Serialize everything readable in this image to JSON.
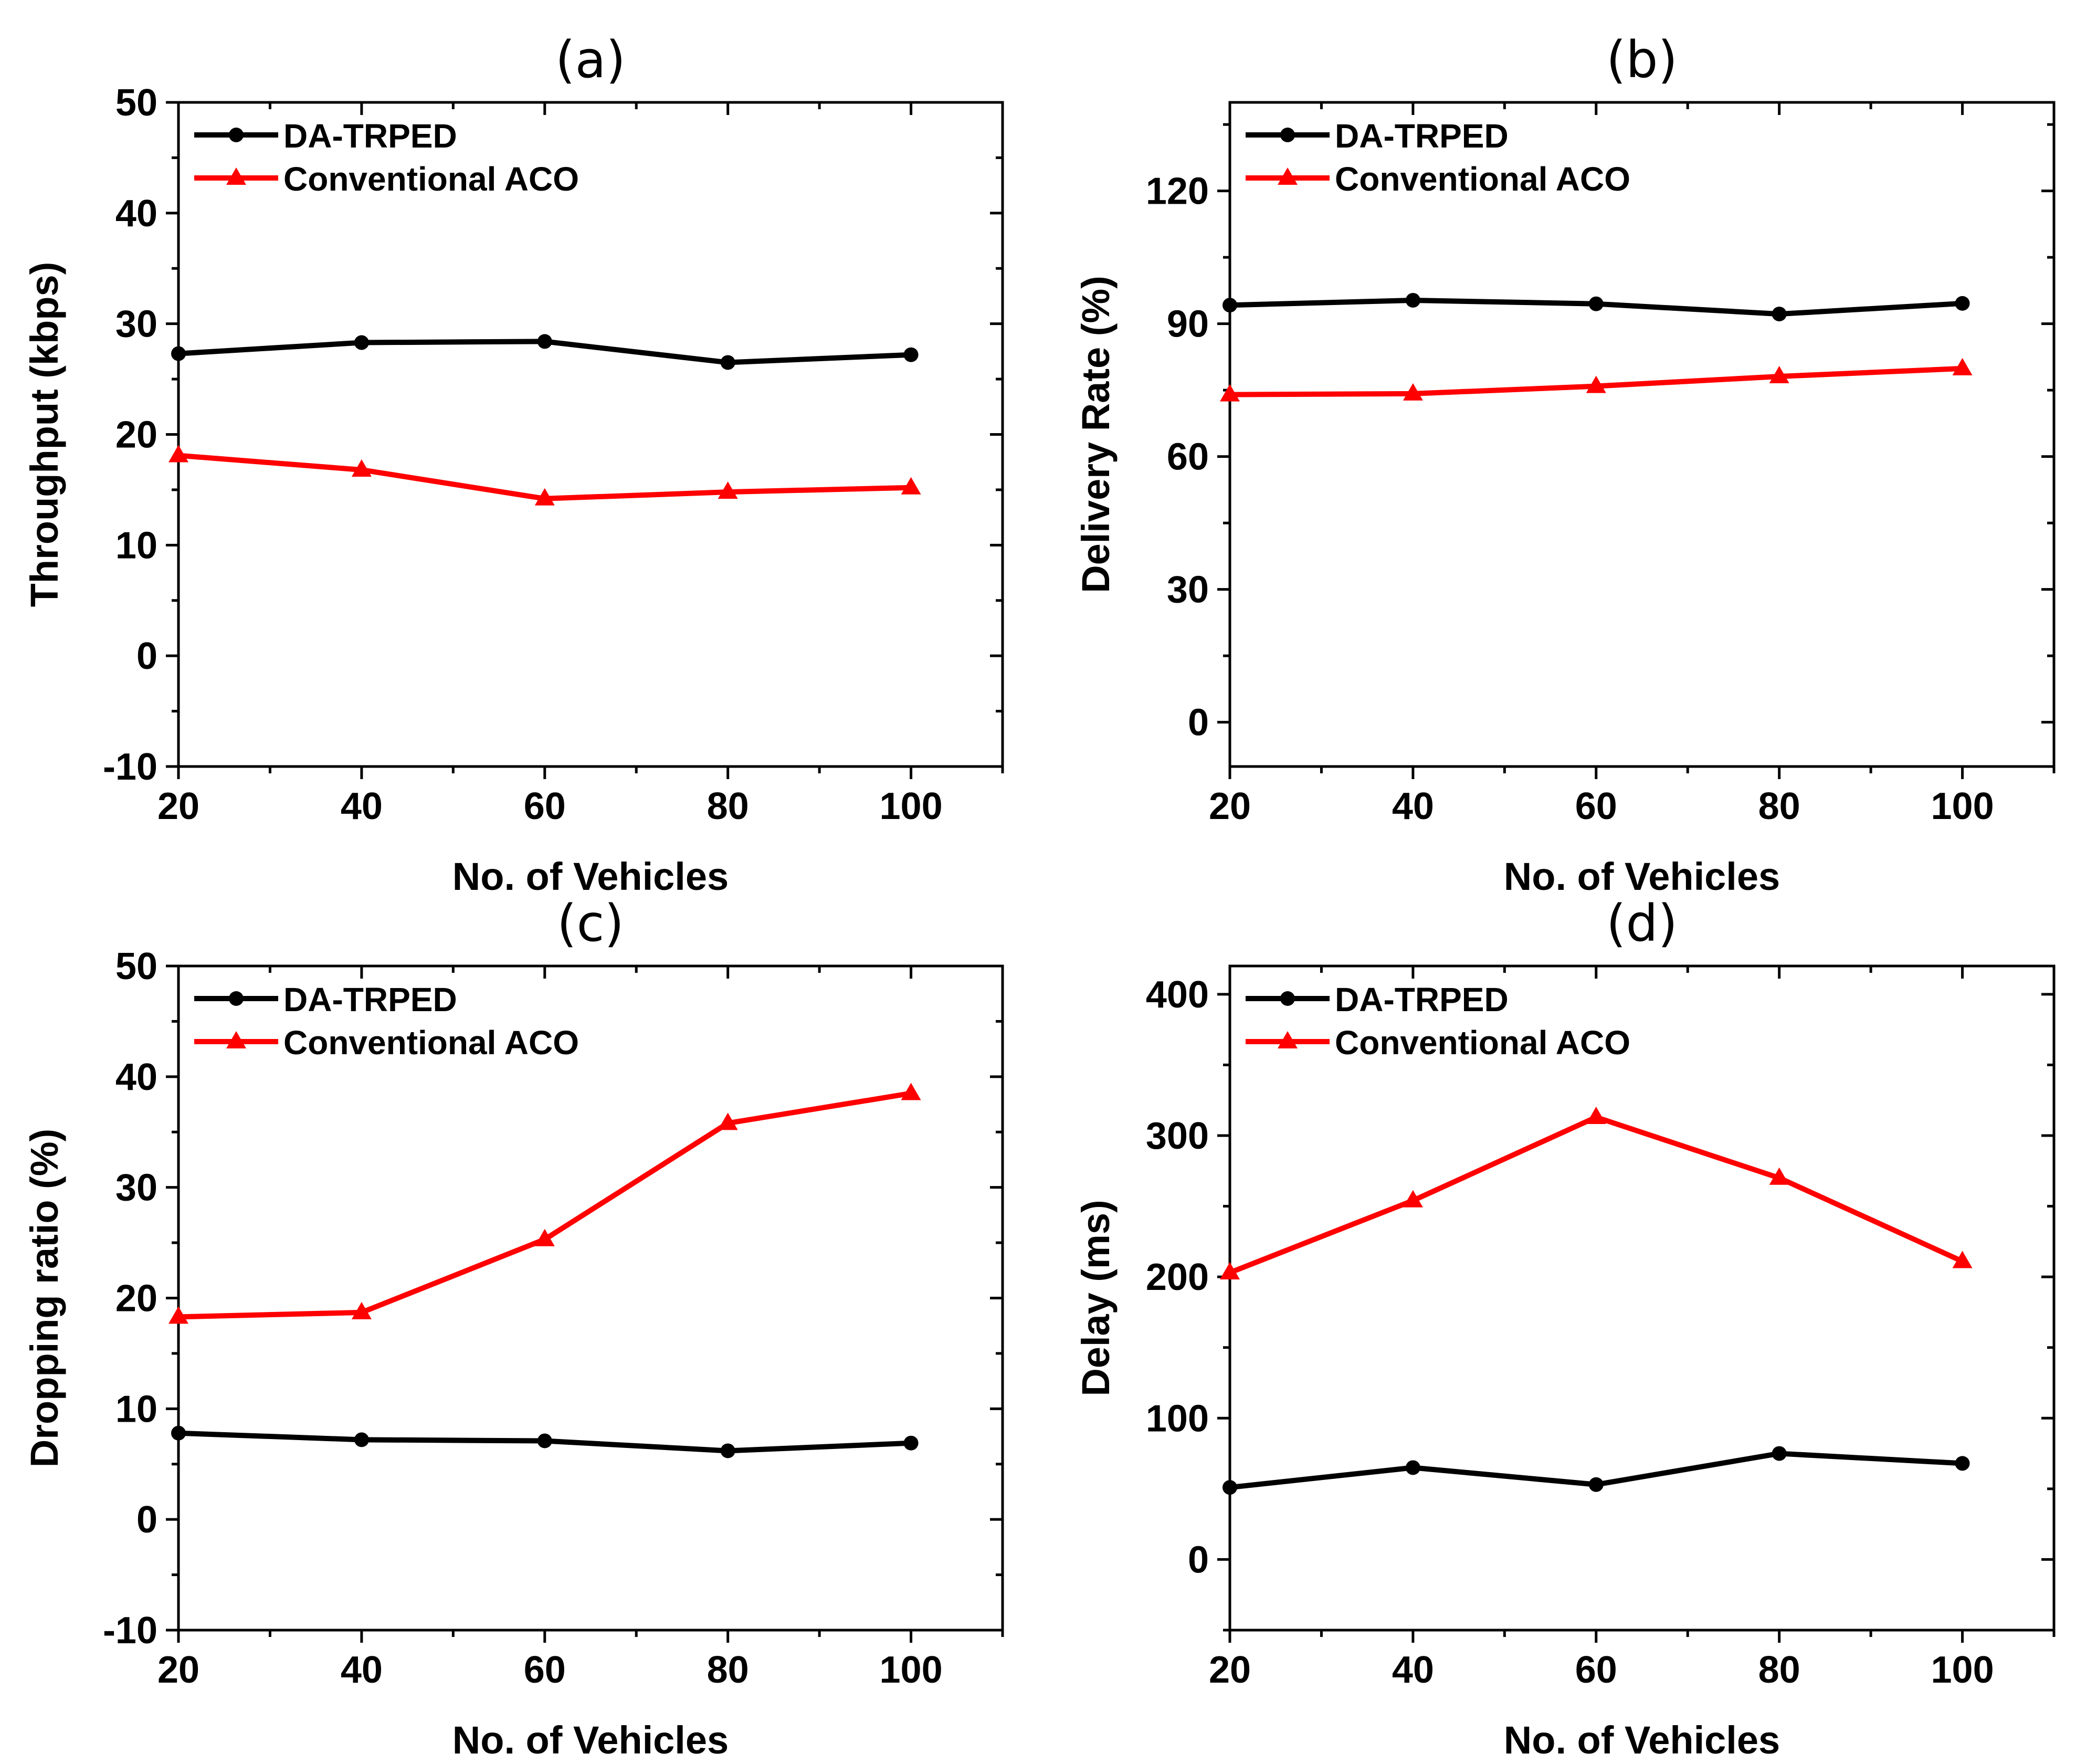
{
  "figure": {
    "panel_count": 4
  },
  "chart_data": [
    {
      "type": "line",
      "panel_label": "(a)",
      "title": "(a)",
      "xlabel": "No. of Vehicles",
      "ylabel": "Throughput (kbps)",
      "xlim": [
        20,
        110
      ],
      "ylim": [
        -10,
        50
      ],
      "xticks": [
        20,
        40,
        60,
        80,
        100
      ],
      "yticks": [
        -10,
        0,
        10,
        20,
        30,
        40,
        50
      ],
      "legend_position": "top-left",
      "grid": false,
      "x": [
        20,
        40,
        60,
        80,
        100
      ],
      "series": [
        {
          "name": "DA-TRPED",
          "color": "#000000",
          "marker": "circle",
          "values": [
            27.3,
            28.3,
            28.4,
            26.5,
            27.2
          ]
        },
        {
          "name": "Conventional ACO",
          "color": "#ff0000",
          "marker": "triangle",
          "values": [
            18.1,
            16.8,
            14.2,
            14.8,
            15.2
          ]
        }
      ]
    },
    {
      "type": "line",
      "panel_label": "(b)",
      "title": "(b)",
      "xlabel": "No. of Vehicles",
      "ylabel": "Delivery Rate (%)",
      "xlim": [
        20,
        110
      ],
      "ylim": [
        -10,
        140
      ],
      "xticks": [
        20,
        40,
        60,
        80,
        100
      ],
      "yticks": [
        0,
        30,
        60,
        90,
        120
      ],
      "legend_position": "top-left",
      "grid": false,
      "x": [
        20,
        40,
        60,
        80,
        100
      ],
      "series": [
        {
          "name": "DA-TRPED",
          "color": "#000000",
          "marker": "circle",
          "values": [
            94.2,
            95.3,
            94.5,
            92.2,
            94.6
          ]
        },
        {
          "name": "Conventional ACO",
          "color": "#ff0000",
          "marker": "triangle",
          "values": [
            74.0,
            74.2,
            75.9,
            78.1,
            79.9
          ]
        }
      ]
    },
    {
      "type": "line",
      "panel_label": "(c)",
      "title": "(c)",
      "xlabel": "No. of Vehicles",
      "ylabel": "Dropping ratio (%)",
      "xlim": [
        20,
        110
      ],
      "ylim": [
        -10,
        50
      ],
      "xticks": [
        20,
        40,
        60,
        80,
        100
      ],
      "yticks": [
        -10,
        0,
        10,
        20,
        30,
        40,
        50
      ],
      "legend_position": "top-left",
      "grid": false,
      "x": [
        20,
        40,
        60,
        80,
        100
      ],
      "series": [
        {
          "name": "DA-TRPED",
          "color": "#000000",
          "marker": "circle",
          "values": [
            7.8,
            7.2,
            7.1,
            6.2,
            6.9
          ]
        },
        {
          "name": "Conventional ACO",
          "color": "#ff0000",
          "marker": "triangle",
          "values": [
            18.3,
            18.7,
            25.3,
            35.8,
            38.5
          ]
        }
      ]
    },
    {
      "type": "line",
      "panel_label": "(d)",
      "title": "(d)",
      "xlabel": "No. of Vehicles",
      "ylabel": "Delay (ms)",
      "xlim": [
        20,
        110
      ],
      "ylim": [
        -50,
        420
      ],
      "xticks": [
        20,
        40,
        60,
        80,
        100
      ],
      "yticks": [
        0,
        100,
        200,
        300,
        400
      ],
      "legend_position": "top-left",
      "grid": false,
      "x": [
        20,
        40,
        60,
        80,
        100
      ],
      "series": [
        {
          "name": "DA-TRPED",
          "color": "#000000",
          "marker": "circle",
          "values": [
            51,
            65,
            53,
            75,
            68
          ]
        },
        {
          "name": "Conventional ACO",
          "color": "#ff0000",
          "marker": "triangle",
          "values": [
            203,
            254,
            313,
            270,
            211
          ]
        }
      ]
    }
  ]
}
